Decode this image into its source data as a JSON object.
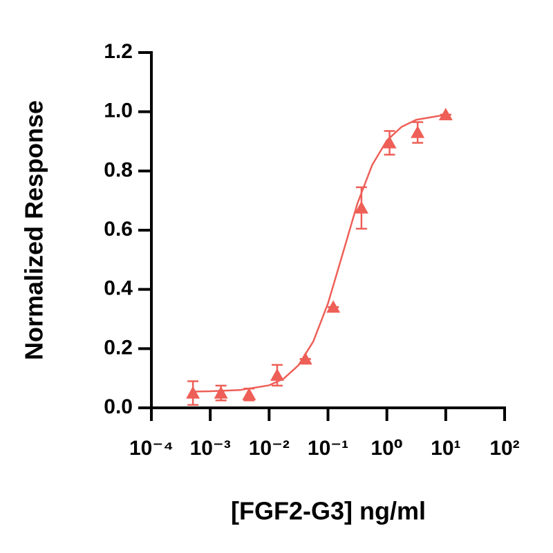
{
  "chart_data": {
    "type": "scatter",
    "x_label": "[FGF2-G3] ng/ml",
    "y_label": "Normalized Response",
    "x_scale": "log",
    "color": "#ee5f57",
    "x": [
      0.000508,
      0.00152,
      0.00457,
      0.0137,
      0.0412,
      0.123,
      0.37,
      1.11,
      3.33,
      10
    ],
    "values": [
      0.05,
      0.05,
      0.045,
      0.11,
      0.165,
      0.34,
      0.675,
      0.895,
      0.93,
      0.99
    ],
    "errors": [
      0.04,
      0.025,
      0.02,
      0.035,
      0,
      0,
      0.07,
      0.04,
      0.035,
      0
    ],
    "fit": {
      "x": [
        0.0005,
        0.001,
        0.00316,
        0.01,
        0.0178,
        0.0316,
        0.0562,
        0.1,
        0.178,
        0.316,
        0.562,
        1,
        1.78,
        3.16,
        10
      ],
      "values": [
        0.055,
        0.056,
        0.06,
        0.076,
        0.099,
        0.144,
        0.224,
        0.353,
        0.521,
        0.69,
        0.82,
        0.903,
        0.949,
        0.973,
        0.99
      ]
    },
    "xlim": [
      0.0001,
      100
    ],
    "ylim": [
      0,
      1.2
    ],
    "xticks": [
      {
        "value": 0.0001,
        "label": "10⁻⁴"
      },
      {
        "value": 0.001,
        "label": "10⁻³"
      },
      {
        "value": 0.01,
        "label": "10⁻²"
      },
      {
        "value": 0.1,
        "label": "10⁻¹"
      },
      {
        "value": 1,
        "label": "10⁰"
      },
      {
        "value": 10,
        "label": "10¹"
      },
      {
        "value": 100,
        "label": "10²"
      }
    ],
    "yticks": [
      {
        "value": 0,
        "label": "0.0"
      },
      {
        "value": 0.2,
        "label": "0.2"
      },
      {
        "value": 0.4,
        "label": "0.4"
      },
      {
        "value": 0.6,
        "label": "0.6"
      },
      {
        "value": 0.8,
        "label": "0.8"
      },
      {
        "value": 1,
        "label": "1.0"
      },
      {
        "value": 1.2,
        "label": "1.2"
      }
    ]
  }
}
